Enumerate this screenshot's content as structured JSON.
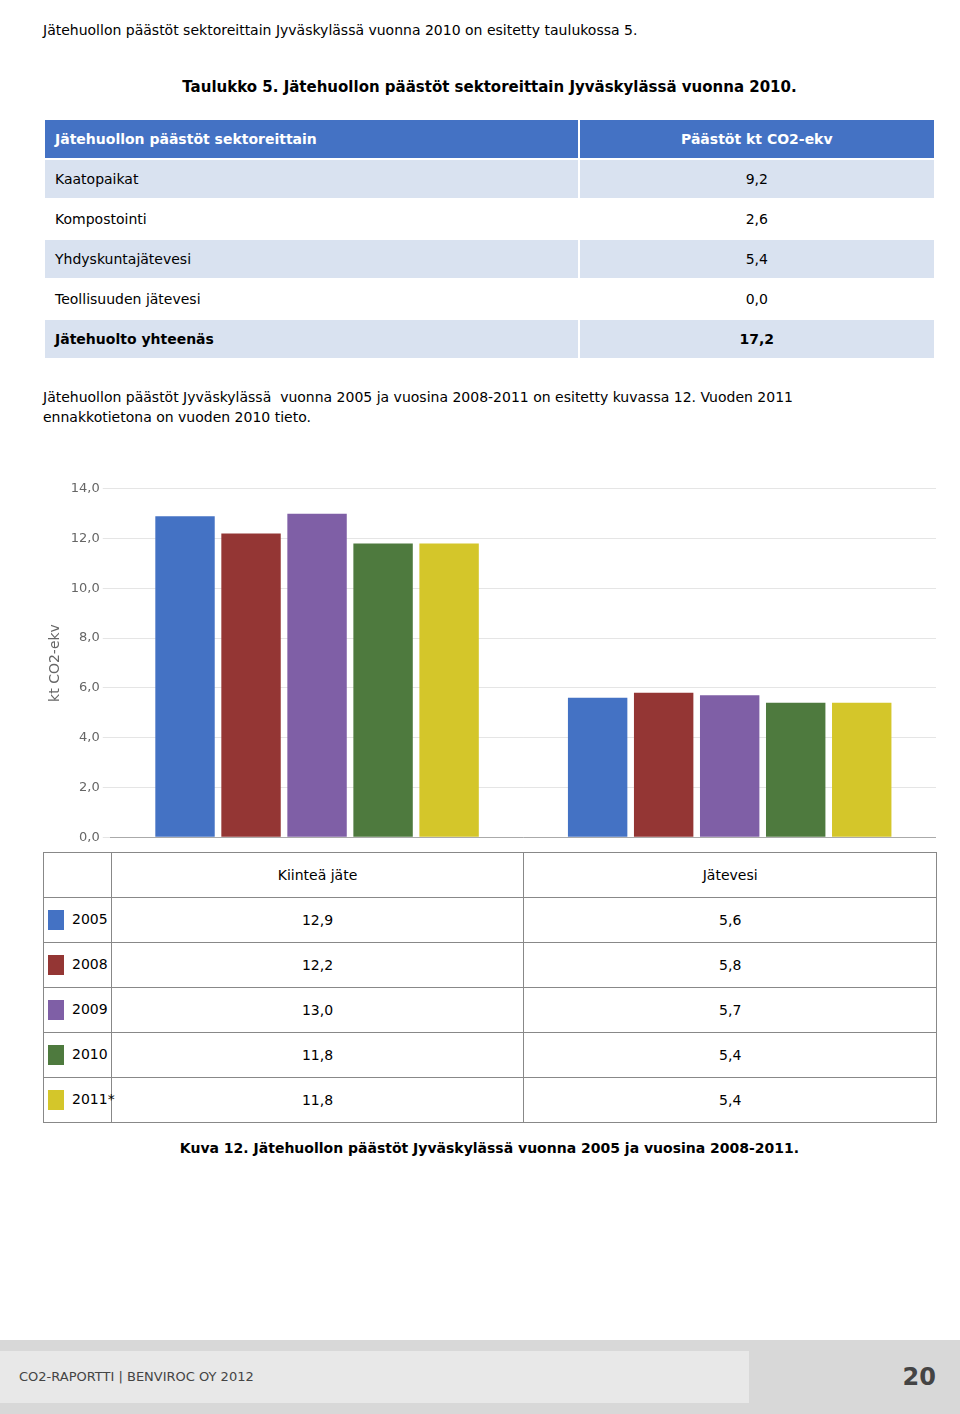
{
  "page_text_top": "Jätehuollon päästöt sektoreittain Jyväskylässä vuonna 2010 on esitetty taulukossa 5.",
  "table": {
    "title": "Taulukko 5. Jätehuollon päästöt sektoreittain Jyväskylässä vuonna 2010.",
    "columns": [
      "Jätehuollon päästöt sektoreittain",
      "Päästöt kt CO2-ekv"
    ],
    "rows": [
      [
        "Kaatopaikat",
        "9,2"
      ],
      [
        "Kompostointi",
        "2,6"
      ],
      [
        "Yhdyskuntajätevesi",
        "5,4"
      ],
      [
        "Teollisuuden jätevesi",
        "0,0"
      ],
      [
        "Jätehuolto yhteenäs",
        "17,2"
      ]
    ],
    "bold_rows": [
      4
    ]
  },
  "paragraph_text": "Jätehuollon päästöt Jyväskylässä  vuonna 2005 ja vuosina 2008-2011 on esitetty kuvassa 12. Vuoden 2011\nennakkotietona on vuoden 2010 tieto.",
  "chart_data": {
    "type": "bar",
    "categories": [
      "Kiinteä jäte",
      "Jätevesi"
    ],
    "series": [
      {
        "name": "2005",
        "color": "#4472C4",
        "values": [
          12.9,
          5.6
        ],
        "value_labels": [
          "12,9",
          "5,6"
        ]
      },
      {
        "name": "2008",
        "color": "#943634",
        "values": [
          12.2,
          5.8
        ],
        "value_labels": [
          "12,2",
          "5,8"
        ]
      },
      {
        "name": "2009",
        "color": "#7F5FA6",
        "values": [
          13.0,
          5.7
        ],
        "value_labels": [
          "13,0",
          "5,7"
        ]
      },
      {
        "name": "2010",
        "color": "#4E7A3E",
        "values": [
          11.8,
          5.4
        ],
        "value_labels": [
          "11,8",
          "5,4"
        ]
      },
      {
        "name": "2011*",
        "color": "#D4C62A",
        "values": [
          11.8,
          5.4
        ],
        "value_labels": [
          "11,8",
          "5,4"
        ]
      }
    ],
    "ylabel": "kt CO2-ekv",
    "ylim": [
      0,
      14.0
    ],
    "yticks": [
      {
        "value": 0.0,
        "label": "0,0"
      },
      {
        "value": 2.0,
        "label": "2,0"
      },
      {
        "value": 4.0,
        "label": "4,0"
      },
      {
        "value": 6.0,
        "label": "6,0"
      },
      {
        "value": 8.0,
        "label": "8,0"
      },
      {
        "value": 10.0,
        "label": "10,0"
      },
      {
        "value": 12.0,
        "label": "12,0"
      },
      {
        "value": 14.0,
        "label": "14,0"
      }
    ],
    "grid": true,
    "legend": "bottom",
    "tick_labels": "y"
  },
  "caption": "Kuva 12. Jätehuollon päästöt Jyväskylässä  vuonna 2005 ja vuosina 2008-2011.",
  "footer_left": "CO2-RAPORTTI | BENVIROC OY 2012",
  "footer_right": "20"
}
